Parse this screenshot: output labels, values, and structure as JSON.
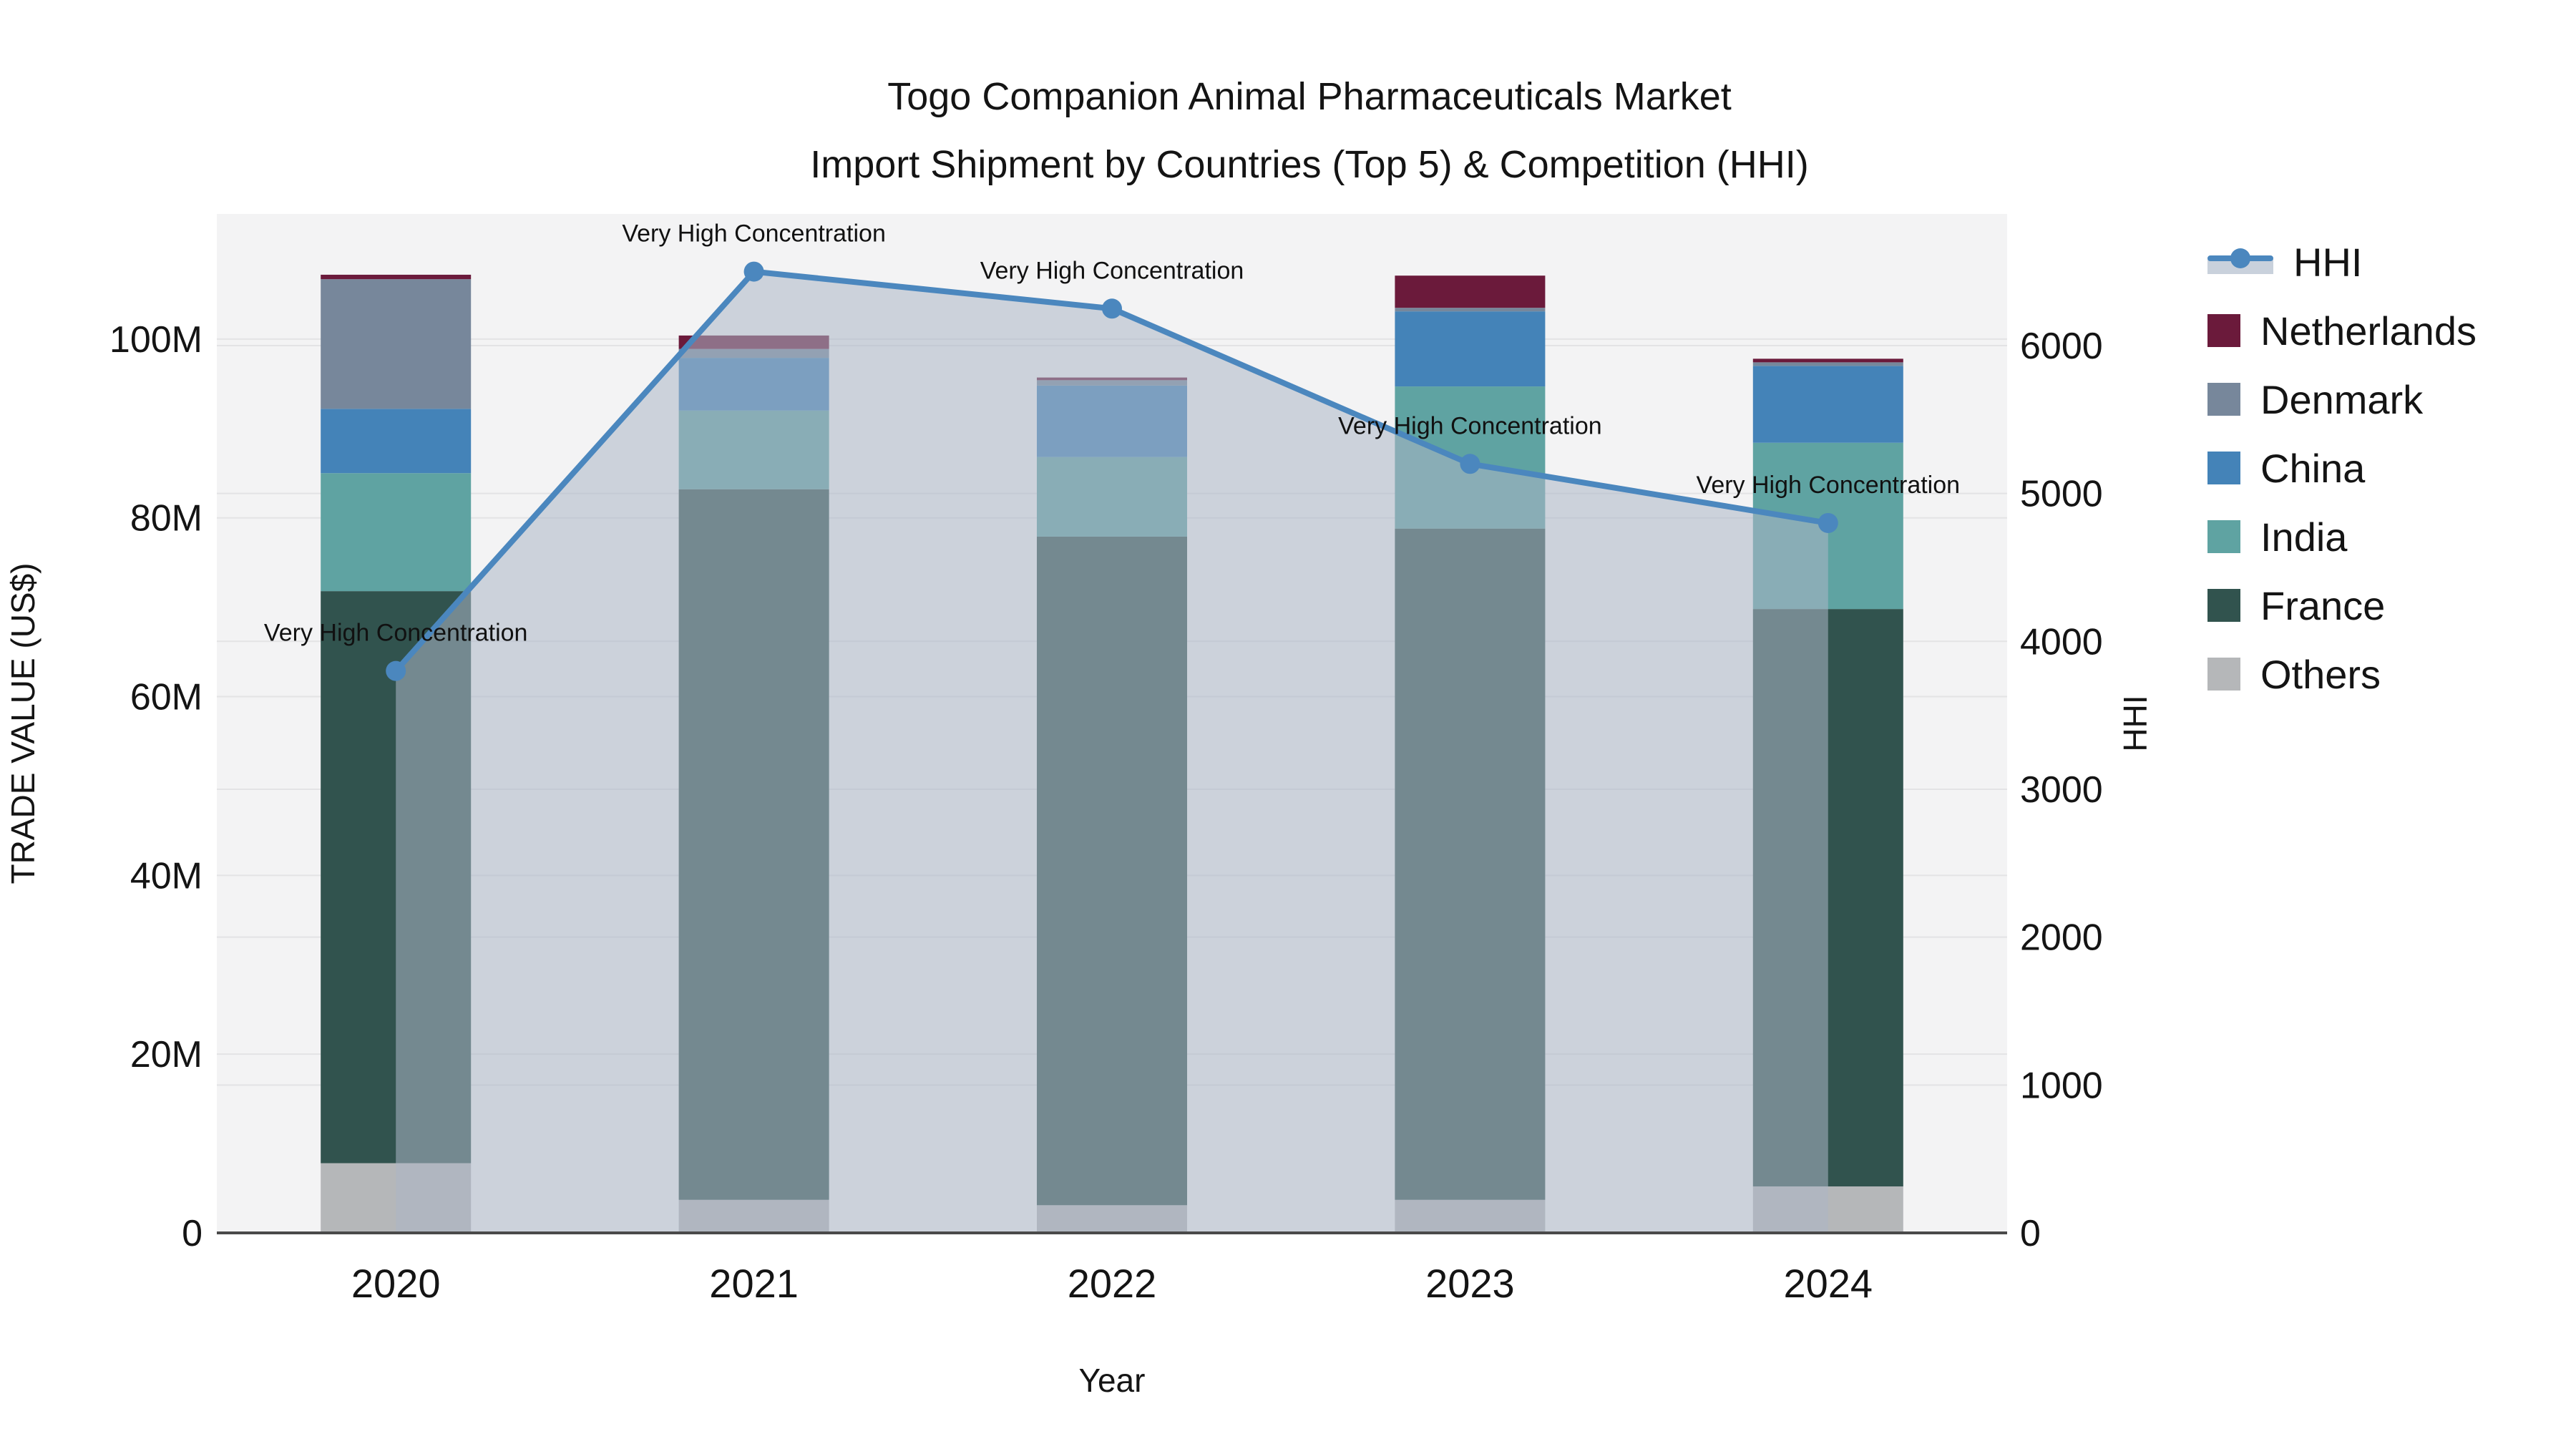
{
  "title": {
    "line1": "Togo Companion Animal Pharmaceuticals Market",
    "line2": "Import Shipment by Countries (Top 5) & Competition (HHI)"
  },
  "axes": {
    "x_label": "Year",
    "y_left_label": "TRADE VALUE (US$)",
    "y_right_label": "HHI",
    "x_ticks": [
      "2020",
      "2021",
      "2022",
      "2023",
      "2024"
    ],
    "y_left_ticks": [
      "0",
      "20M",
      "40M",
      "60M",
      "80M",
      "100M"
    ],
    "y_left_tick_values": [
      0,
      20,
      40,
      60,
      80,
      100
    ],
    "y_right_ticks": [
      "0",
      "1000",
      "2000",
      "3000",
      "4000",
      "5000",
      "6000"
    ],
    "y_right_tick_values": [
      0,
      1000,
      2000,
      3000,
      4000,
      5000,
      6000
    ]
  },
  "legend": {
    "items": [
      {
        "label": "HHI",
        "type": "line",
        "color": "#4B87BE",
        "band_color": "#C9D1DC"
      },
      {
        "label": "Netherlands",
        "type": "square",
        "color": "#6B1A3B"
      },
      {
        "label": "Denmark",
        "type": "square",
        "color": "#77879B"
      },
      {
        "label": "China",
        "type": "square",
        "color": "#4483B8"
      },
      {
        "label": "India",
        "type": "square",
        "color": "#5FA3A2"
      },
      {
        "label": "France",
        "type": "square",
        "color": "#31534E"
      },
      {
        "label": "Others",
        "type": "square",
        "color": "#B5B7B9"
      }
    ]
  },
  "chart_data": {
    "type": "combo",
    "bar_type": "stacked-bar",
    "line_type": "line",
    "categories": [
      "2020",
      "2021",
      "2022",
      "2023",
      "2024"
    ],
    "bar_value_unit": "million US$",
    "series": [
      {
        "name": "Others",
        "color": "#B5B7B9",
        "values": [
          7.8,
          3.7,
          3.1,
          3.7,
          5.2
        ]
      },
      {
        "name": "France",
        "color": "#31534E",
        "values": [
          64.0,
          79.5,
          74.8,
          75.1,
          64.6
        ]
      },
      {
        "name": "India",
        "color": "#5FA3A2",
        "values": [
          13.2,
          8.8,
          8.9,
          15.9,
          18.6
        ]
      },
      {
        "name": "China",
        "color": "#4483B8",
        "values": [
          7.2,
          5.9,
          8.0,
          8.4,
          8.6
        ]
      },
      {
        "name": "Denmark",
        "color": "#77879B",
        "values": [
          14.5,
          1.0,
          0.6,
          0.4,
          0.4
        ]
      },
      {
        "name": "Netherlands",
        "color": "#6B1A3B",
        "values": [
          0.5,
          1.5,
          0.3,
          3.6,
          0.4
        ]
      }
    ],
    "line": {
      "name": "HHI",
      "color": "#4B87BE",
      "area_fill": "rgba(172,183,199,0.55)",
      "values": [
        3800,
        6500,
        6250,
        5200,
        4800
      ],
      "annotations": [
        "Very High Concentration",
        "Very High Concentration",
        "Very High Concentration",
        "Very High Concentration",
        "Very High Concentration"
      ]
    },
    "title": "Togo Companion Animal Pharmaceuticals Market Import Shipment by Countries (Top 5) & Competition (HHI)",
    "xlabel": "Year",
    "ylabel_left": "TRADE VALUE (US$)",
    "ylabel_right": "HHI",
    "ylim_left": [
      0,
      114
    ],
    "ylim_right": [
      0,
      6890
    ],
    "grid": true,
    "legend_position": "right",
    "plot_bg": "#F3F3F4",
    "grid_color": "#E3E3E5",
    "spine_color": "#4A4A4A"
  }
}
